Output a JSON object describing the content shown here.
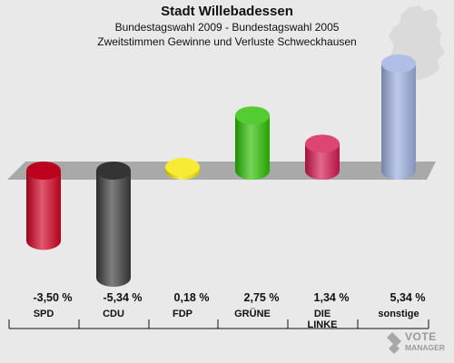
{
  "header": {
    "title": "Stadt Willebadessen",
    "subtitle1": "Bundestagswahl 2009 - Bundestagswahl 2005",
    "subtitle2": "Zweitstimmen Gewinne und Verluste Schweckhausen"
  },
  "watermark": {
    "line1": "VOTE",
    "line2": "MANAGER"
  },
  "chart_data": {
    "type": "bar",
    "title": "Stadt Willebadessen",
    "subtitle": "Bundestagswahl 2009 - Bundestagswahl 2005 / Zweitstimmen Gewinne und Verluste Schweckhausen",
    "categories": [
      "SPD",
      "CDU",
      "FDP",
      "GRÜNE",
      "DIE LINKE",
      "sonstige"
    ],
    "values": [
      -3.5,
      -5.34,
      0.18,
      2.75,
      1.34,
      5.34
    ],
    "labels": [
      "-3,50 %",
      "-5,34 %",
      "0,18 %",
      "2,75 %",
      "1,34 %",
      "5,34 %"
    ],
    "colors": [
      "#d10021",
      "#3a3a3a",
      "#f5e600",
      "#2bbf00",
      "#d4174f",
      "#9aaedd"
    ],
    "xlabel": "",
    "ylabel": "",
    "ylim": [
      -5.34,
      5.34
    ],
    "grid": false,
    "legend": "none"
  }
}
